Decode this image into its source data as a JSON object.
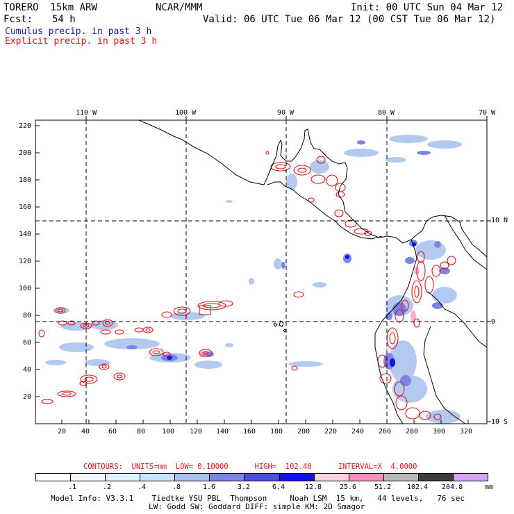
{
  "header": {
    "model_name": "TORERO  15km ARW",
    "org": "NCAR/MMM",
    "init": "Init: 00 UTC Sun 04 Mar 12",
    "fcst_label": "Fcst:",
    "fcst_value": "54 h",
    "valid": "Valid: 06 UTC Tue 06 Mar 12 (00 CST Tue 06 Mar 12)",
    "legend_cumulus": "Cumulus precip. in past 3 h",
    "legend_explicit": "Explicit precip. in past 3 h"
  },
  "map": {
    "lon_labels": [
      "110 W",
      "100 W",
      "90 W",
      "80 W",
      "70 W"
    ],
    "lat_labels": [
      "10 N",
      "0",
      "10 S"
    ],
    "y_ticks": [
      "220",
      "200",
      "180",
      "160",
      "140",
      "120",
      "100",
      "80",
      "60",
      "40",
      "20"
    ],
    "x_ticks": [
      "20",
      "40",
      "60",
      "80",
      "100",
      "120",
      "140",
      "160",
      "180",
      "200",
      "220",
      "240",
      "260",
      "280",
      "300",
      "320"
    ]
  },
  "contour_info": {
    "text": "CONTOURS:  UNITS=mm  LOW= 0.10000      HIGH=  102.40      INTERVAL=X  4.0000"
  },
  "scale": {
    "labels": [
      ".1",
      ".2",
      ".4",
      ".8",
      "1.6",
      "3.2",
      "6.4",
      "12.8",
      "25.6",
      "51.2",
      "102.4",
      "204.8"
    ],
    "unit": "mm",
    "colors": [
      "#ffffff",
      "#f0f8fe",
      "#e0f3fd",
      "#c6e4f7",
      "#a7c0ee",
      "#7d84e8",
      "#4c4ee2",
      "#1010e8",
      "#f8d2d6",
      "#f58dbf",
      "#b9b9b9",
      "#3e3e3e",
      "#d5a5f5"
    ]
  },
  "model_info": {
    "line1": "Model Info: V3.3.1    Tiedtke YSU PBL  Thompson     Noah LSM  15 km,   44 levels,   76 sec",
    "line2": "LW: Godd SW: Goddard DIFF: simple KM: 2D Smagor"
  }
}
